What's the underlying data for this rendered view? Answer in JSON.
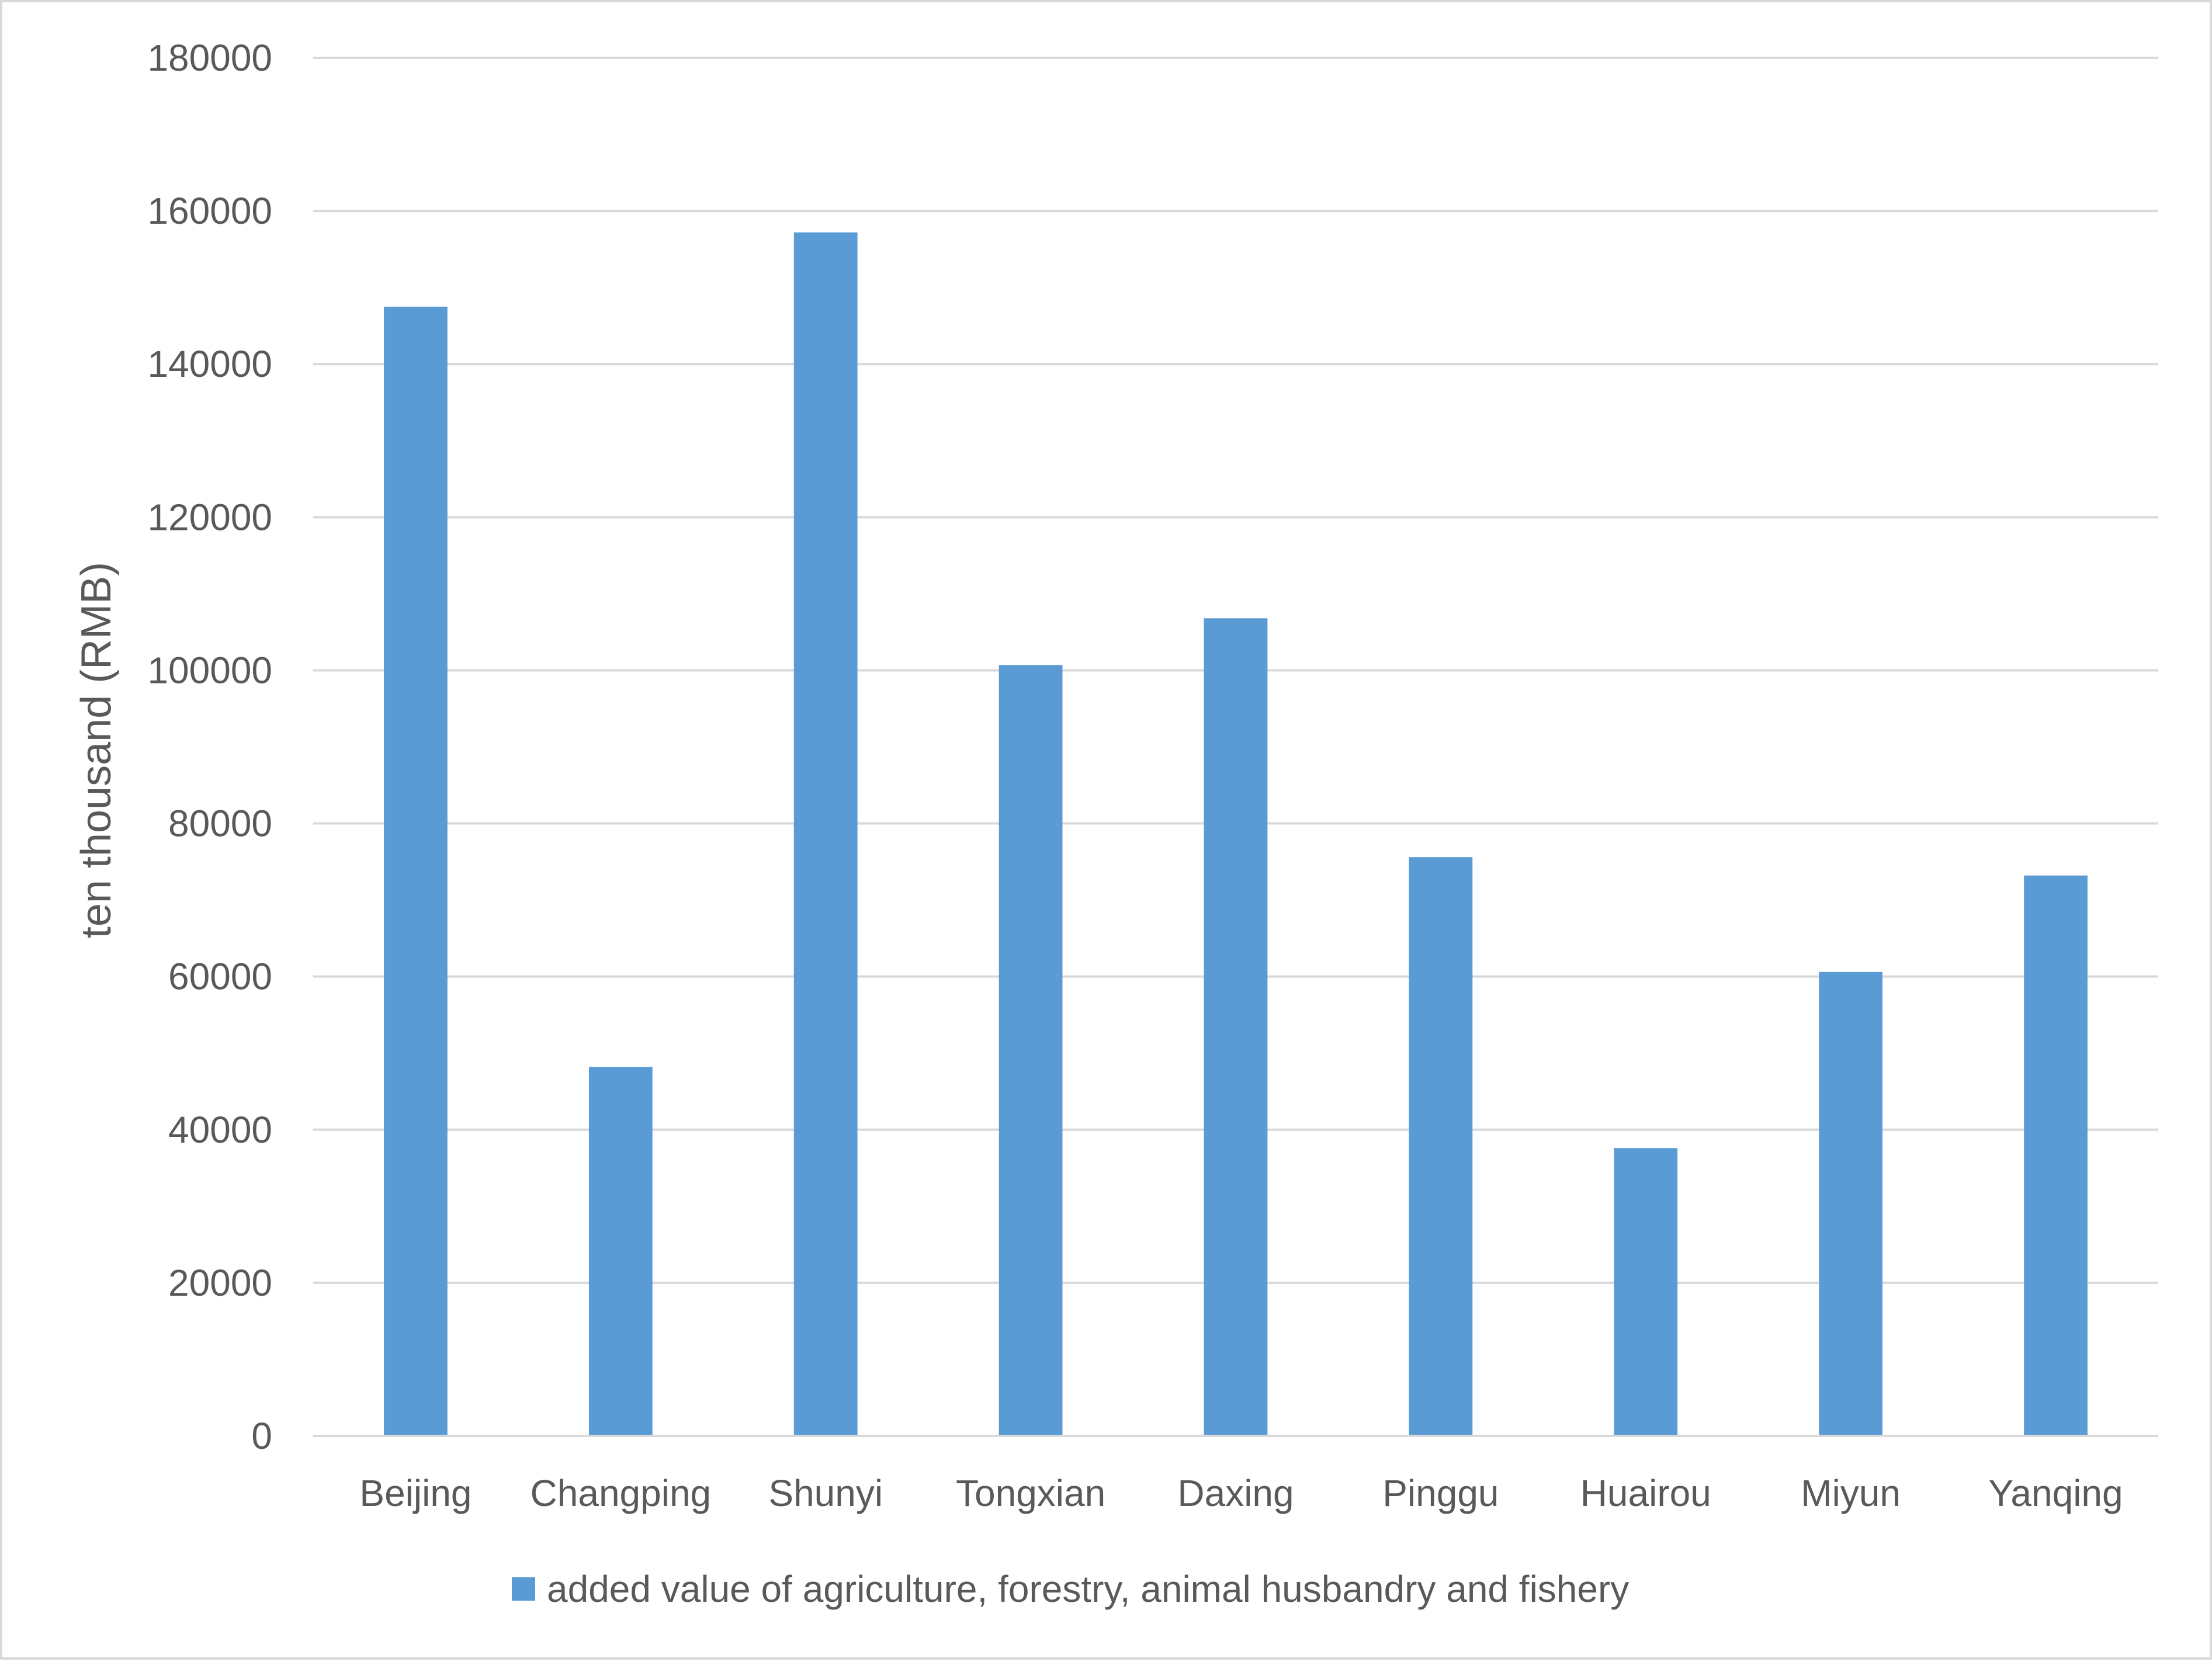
{
  "chart_data": {
    "type": "bar",
    "title": "",
    "xlabel": "",
    "ylabel": "ten thousand (RMB)",
    "ylim": [
      0,
      180000
    ],
    "yticks": [
      0,
      20000,
      40000,
      60000,
      80000,
      100000,
      120000,
      140000,
      160000,
      180000
    ],
    "grid": true,
    "legend_position": "bottom",
    "categories": [
      "Beijing",
      "Changping",
      "Shunyi",
      "Tongxian",
      "Daxing",
      "Pinggu",
      "Huairou",
      "Miyun",
      "Yanqing"
    ],
    "series": [
      {
        "name": "added value of agriculture, forestry, animal husbandry and fishery",
        "color": "#5b9bd5",
        "values": [
          147500,
          48200,
          157200,
          100700,
          106800,
          75600,
          37600,
          60600,
          73200
        ]
      }
    ]
  }
}
